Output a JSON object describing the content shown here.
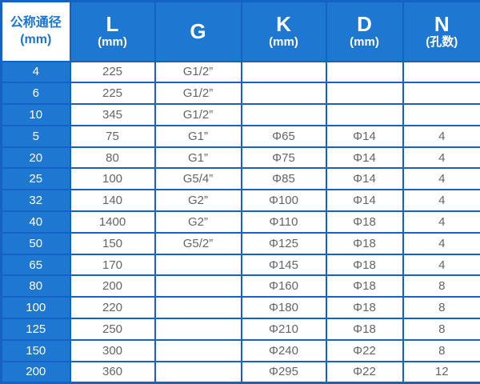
{
  "colors": {
    "border_blue": "#1463c2",
    "header_bg": "#1e78d2",
    "first_column_bg": "#1e78d2",
    "corner_cell_bg": "#ffffff",
    "corner_cell_text": "#1a74d2",
    "header_text": "#ffffff",
    "data_text": "#636569",
    "data_bg": "#ffffff"
  },
  "table": {
    "columns": [
      {
        "label": "公称通径",
        "sub": "(mm)"
      },
      {
        "label": "L",
        "sub": "(mm)"
      },
      {
        "label": "G",
        "sub": ""
      },
      {
        "label": "K",
        "sub": "(mm)"
      },
      {
        "label": "D",
        "sub": "(mm)"
      },
      {
        "label": "N",
        "sub": "(孔数)"
      }
    ],
    "rows": [
      [
        "4",
        "225",
        "G1/2”",
        "",
        "",
        ""
      ],
      [
        "6",
        "225",
        "G1/2”",
        "",
        "",
        ""
      ],
      [
        "10",
        "345",
        "G1/2”",
        "",
        "",
        ""
      ],
      [
        "5",
        "75",
        "G1”",
        "Φ65",
        "Φ14",
        "4"
      ],
      [
        "20",
        "80",
        "G1”",
        "Φ75",
        "Φ14",
        "4"
      ],
      [
        "25",
        "100",
        "G5/4”",
        "Φ85",
        "Φ14",
        "4"
      ],
      [
        "32",
        "140",
        "G2”",
        "Φ100",
        "Φ14",
        "4"
      ],
      [
        "40",
        "1400",
        "G2”",
        "Φ110",
        "Φ18",
        "4"
      ],
      [
        "50",
        "150",
        "G5/2”",
        "Φ125",
        "Φ18",
        "4"
      ],
      [
        "65",
        "170",
        "",
        "Φ145",
        "Φ18",
        "4"
      ],
      [
        "80",
        "200",
        "",
        "Φ160",
        "Φ18",
        "8"
      ],
      [
        "100",
        "220",
        "",
        "Φ180",
        "Φ18",
        "8"
      ],
      [
        "125",
        "250",
        "",
        "Φ210",
        "Φ18",
        "8"
      ],
      [
        "150",
        "300",
        "",
        "Φ240",
        "Φ22",
        "8"
      ],
      [
        "200",
        "360",
        "",
        "Φ295",
        "Φ22",
        "12"
      ]
    ]
  },
  "chart_data": {
    "type": "table",
    "title": "",
    "columns": [
      "公称通径 (mm)",
      "L (mm)",
      "G",
      "K (mm)",
      "D (mm)",
      "N (孔数)"
    ],
    "rows": [
      [
        "4",
        "225",
        "G1/2”",
        "",
        "",
        ""
      ],
      [
        "6",
        "225",
        "G1/2”",
        "",
        "",
        ""
      ],
      [
        "10",
        "345",
        "G1/2”",
        "",
        "",
        ""
      ],
      [
        "5",
        "75",
        "G1”",
        "Φ65",
        "Φ14",
        "4"
      ],
      [
        "20",
        "80",
        "G1”",
        "Φ75",
        "Φ14",
        "4"
      ],
      [
        "25",
        "100",
        "G5/4”",
        "Φ85",
        "Φ14",
        "4"
      ],
      [
        "32",
        "140",
        "G2”",
        "Φ100",
        "Φ14",
        "4"
      ],
      [
        "40",
        "1400",
        "G2”",
        "Φ110",
        "Φ18",
        "4"
      ],
      [
        "50",
        "150",
        "G5/2”",
        "Φ125",
        "Φ18",
        "4"
      ],
      [
        "65",
        "170",
        "",
        "Φ145",
        "Φ18",
        "4"
      ],
      [
        "80",
        "200",
        "",
        "Φ160",
        "Φ18",
        "8"
      ],
      [
        "100",
        "220",
        "",
        "Φ180",
        "Φ18",
        "8"
      ],
      [
        "125",
        "250",
        "",
        "Φ210",
        "Φ18",
        "8"
      ],
      [
        "150",
        "300",
        "",
        "Φ240",
        "Φ22",
        "8"
      ],
      [
        "200",
        "360",
        "",
        "Φ295",
        "Φ22",
        "12"
      ]
    ]
  }
}
